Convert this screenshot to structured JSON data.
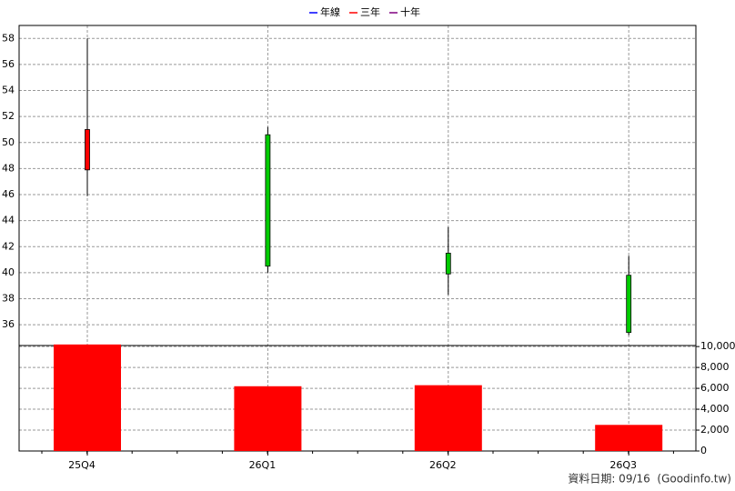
{
  "chart_data": {
    "type": "candlestick",
    "legend": [
      {
        "name": "年線",
        "color": "#0000ff"
      },
      {
        "name": "三年",
        "color": "#ff0000"
      },
      {
        "name": "十年",
        "color": "#800080"
      }
    ],
    "categories": [
      "25Q4",
      "26Q1",
      "26Q2",
      "26Q3"
    ],
    "open": [
      47.9,
      50.6,
      41.5,
      39.8
    ],
    "high": [
      58.0,
      51.2,
      43.5,
      41.3
    ],
    "low": [
      45.9,
      40.0,
      38.3,
      35.2
    ],
    "close": [
      51.0,
      40.5,
      39.9,
      35.4
    ],
    "up_color": "#ff0000",
    "down_color": "#00cc00",
    "ylim": [
      34.4,
      59
    ],
    "yticks": [
      36,
      38,
      40,
      42,
      44,
      46,
      48,
      50,
      52,
      54,
      56,
      58
    ],
    "volume": {
      "values": [
        10200,
        6200,
        6300,
        2500
      ],
      "color": "#ff0000"
    },
    "y2lim": [
      0,
      10100
    ],
    "y2ticks": [
      0,
      {
        "value": 2000,
        "label": "2,000"
      },
      {
        "value": 4000,
        "label": "4,000"
      },
      {
        "value": 6000,
        "label": "6,000"
      },
      {
        "value": 8000,
        "label": "8,000"
      },
      {
        "value": 10000,
        "label": "10,000"
      }
    ],
    "grid": true,
    "footer": "資料日期: 09/16  (Goodinfo.tw)"
  }
}
